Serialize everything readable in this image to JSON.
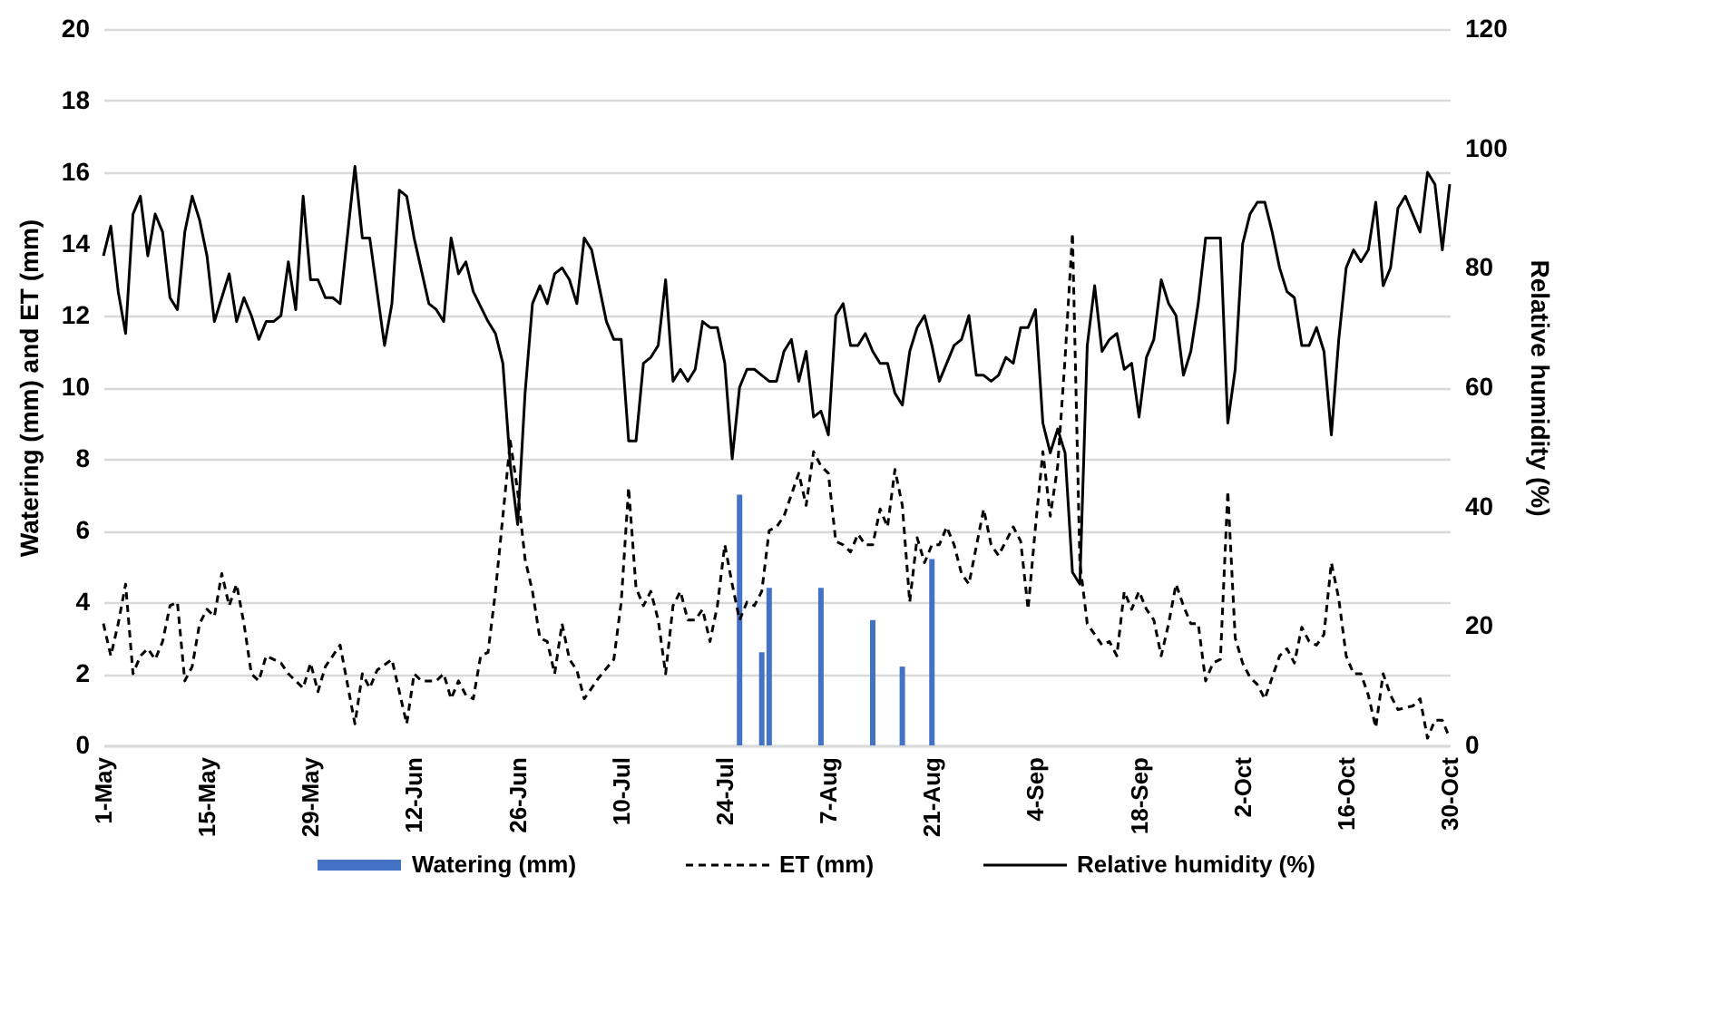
{
  "chart_data": {
    "type": "line",
    "ylabel": "Watering (mm) and ET (mm)",
    "y2label": "Relative humidity (%)",
    "xlim": [
      "--05-01",
      "--10-30"
    ],
    "xticks": [
      {
        "value": "--05-01",
        "label": "1-May"
      },
      {
        "value": "--05-15",
        "label": "15-May"
      },
      {
        "value": "--05-29",
        "label": "29-May"
      },
      {
        "value": "--06-12",
        "label": "12-Jun"
      },
      {
        "value": "--06-26",
        "label": "26-Jun"
      },
      {
        "value": "--07-10",
        "label": "10-Jul"
      },
      {
        "value": "--07-24",
        "label": "24-Jul"
      },
      {
        "value": "--08-07",
        "label": "7-Aug"
      },
      {
        "value": "--08-21",
        "label": "21-Aug"
      },
      {
        "value": "--09-04",
        "label": "4-Sep"
      },
      {
        "value": "--09-18",
        "label": "18-Sep"
      },
      {
        "value": "--10-02",
        "label": "2-Oct"
      },
      {
        "value": "--10-16",
        "label": "16-Oct"
      },
      {
        "value": "--10-30",
        "label": "30-Oct"
      }
    ],
    "ylim": [
      0,
      20
    ],
    "yticks": [
      0,
      2,
      4,
      6,
      8,
      10,
      12,
      14,
      16,
      18,
      20
    ],
    "y2lim": [
      0,
      120
    ],
    "y2ticks": [
      0,
      20,
      40,
      60,
      80,
      100,
      120
    ],
    "grid": "y",
    "legend": "bottom",
    "series": [
      {
        "name": "Watering (mm)",
        "type": "bar",
        "color": "#4472c4",
        "x": [
          "--07-26",
          "--07-29",
          "--07-30",
          "--08-06",
          "--08-13",
          "--08-17",
          "--08-21"
        ],
        "values": [
          7.0,
          2.6,
          4.4,
          4.4,
          3.5,
          2.2,
          5.2
        ]
      },
      {
        "name": "ET (mm)",
        "line_style": "dashed",
        "color": "#000000",
        "x": [
          "--05-01",
          "--05-02",
          "--05-03",
          "--05-04",
          "--05-05",
          "--05-06",
          "--05-07",
          "--05-08",
          "--05-09",
          "--05-10",
          "--05-11",
          "--05-12",
          "--05-13",
          "--05-14",
          "--05-15",
          "--05-16",
          "--05-17",
          "--05-18",
          "--05-19",
          "--05-20",
          "--05-21",
          "--05-22",
          "--05-23",
          "--05-24",
          "--05-25",
          "--05-26",
          "--05-28",
          "--05-29",
          "--05-30",
          "--05-31",
          "--06-02",
          "--06-04",
          "--06-05",
          "--06-06",
          "--06-07",
          "--06-09",
          "--06-11",
          "--06-12",
          "--06-13",
          "--06-15",
          "--06-16",
          "--06-17",
          "--06-18",
          "--06-19",
          "--06-20",
          "--06-21",
          "--06-22",
          "--06-23",
          "--06-24",
          "--06-25",
          "--06-26",
          "--06-27",
          "--06-28",
          "--06-29",
          "--06-30",
          "--07-01",
          "--07-02",
          "--07-03",
          "--07-04",
          "--07-05",
          "--07-06",
          "--07-07",
          "--07-09",
          "--07-10",
          "--07-11",
          "--07-12",
          "--07-13",
          "--07-14",
          "--07-15",
          "--07-16",
          "--07-17",
          "--07-18",
          "--07-19",
          "--07-20",
          "--07-21",
          "--07-22",
          "--07-23",
          "--07-24",
          "--07-25",
          "--07-26",
          "--07-27",
          "--07-28",
          "--07-29",
          "--07-30",
          "--07-31",
          "--08-01",
          "--08-03",
          "--08-04",
          "--08-05",
          "--08-06",
          "--08-07",
          "--08-08",
          "--08-09",
          "--08-10",
          "--08-11",
          "--08-12",
          "--08-13",
          "--08-14",
          "--08-15",
          "--08-16",
          "--08-17",
          "--08-18",
          "--08-19",
          "--08-20",
          "--08-21",
          "--08-22",
          "--08-23",
          "--08-24",
          "--08-25",
          "--08-26",
          "--08-28",
          "--08-29",
          "--08-30",
          "--08-31",
          "--09-01",
          "--09-02",
          "--09-03",
          "--09-04",
          "--09-05",
          "--09-06",
          "--09-07",
          "--09-08",
          "--09-09",
          "--09-10",
          "--09-11",
          "--09-12",
          "--09-13",
          "--09-14",
          "--09-15",
          "--09-16",
          "--09-17",
          "--09-18",
          "--09-19",
          "--09-20",
          "--09-21",
          "--09-22",
          "--09-23",
          "--09-24",
          "--09-25",
          "--09-26",
          "--09-27",
          "--09-28",
          "--09-29",
          "--09-30",
          "--10-01",
          "--10-02",
          "--10-03",
          "--10-04",
          "--10-05",
          "--10-06",
          "--10-07",
          "--10-08",
          "--10-09",
          "--10-10",
          "--10-11",
          "--10-12",
          "--10-13",
          "--10-14",
          "--10-15",
          "--10-16",
          "--10-17",
          "--10-18",
          "--10-19",
          "--10-20",
          "--10-21",
          "--10-22",
          "--10-23",
          "--10-25",
          "--10-26",
          "--10-27",
          "--10-28",
          "--10-29",
          "--10-30"
        ],
        "values": [
          3.4,
          2.5,
          3.4,
          4.5,
          2.0,
          2.5,
          2.7,
          2.4,
          2.9,
          3.9,
          4.0,
          1.8,
          2.2,
          3.4,
          3.8,
          3.6,
          4.8,
          3.9,
          4.5,
          3.4,
          2.0,
          1.8,
          2.5,
          2.4,
          2.3,
          2.0,
          1.6,
          2.3,
          1.5,
          2.2,
          2.8,
          0.6,
          2.0,
          1.6,
          2.1,
          2.4,
          0.6,
          2.0,
          1.8,
          1.8,
          2.0,
          1.3,
          1.8,
          1.4,
          1.3,
          2.5,
          2.6,
          4.3,
          6.4,
          8.5,
          7.1,
          5.2,
          4.3,
          3.0,
          2.9,
          2.0,
          3.4,
          2.4,
          2.1,
          1.3,
          1.6,
          1.9,
          2.4,
          4.0,
          7.2,
          4.4,
          3.9,
          4.3,
          3.5,
          2.0,
          3.9,
          4.3,
          3.5,
          3.5,
          3.8,
          2.9,
          3.9,
          5.6,
          4.5,
          3.5,
          4.0,
          3.9,
          4.3,
          6.0,
          6.1,
          6.4,
          7.6,
          6.7,
          8.2,
          7.8,
          7.6,
          5.7,
          5.6,
          5.4,
          5.9,
          5.6,
          5.6,
          6.6,
          6.1,
          7.7,
          6.7,
          4.0,
          5.8,
          5.1,
          5.6,
          5.6,
          6.1,
          5.6,
          4.8,
          4.5,
          6.6,
          5.6,
          5.3,
          5.7,
          6.1,
          5.7,
          3.8,
          6.1,
          8.2,
          6.4,
          7.8,
          10.8,
          14.3,
          5.1,
          3.4,
          3.1,
          2.8,
          2.9,
          2.5,
          4.3,
          3.8,
          4.3,
          3.8,
          3.5,
          2.5,
          3.4,
          4.5,
          3.9,
          3.4,
          3.4,
          1.8,
          2.3,
          2.4,
          7.1,
          3.0,
          2.3,
          1.9,
          1.7,
          1.3,
          1.9,
          2.5,
          2.7,
          2.3,
          3.3,
          2.9,
          2.8,
          3.1,
          5.1,
          4.1,
          2.5,
          2.0,
          2.0,
          1.4,
          0.5,
          2.0,
          1.4,
          1.0,
          1.1,
          1.3,
          0.2,
          0.7,
          0.7,
          0.2
        ]
      },
      {
        "name": "Relative humidity (%)",
        "line_style": "solid",
        "axis": "y2",
        "color": "#000000",
        "x": [
          "--05-01",
          "--05-02",
          "--05-03",
          "--05-04",
          "--05-05",
          "--05-06",
          "--05-07",
          "--05-08",
          "--05-09",
          "--05-10",
          "--05-11",
          "--05-12",
          "--05-13",
          "--05-14",
          "--05-15",
          "--05-16",
          "--05-17",
          "--05-18",
          "--05-19",
          "--05-20",
          "--05-21",
          "--05-22",
          "--05-23",
          "--05-24",
          "--05-25",
          "--05-26",
          "--05-27",
          "--05-28",
          "--05-29",
          "--05-30",
          "--05-31",
          "--06-01",
          "--06-02",
          "--06-04",
          "--06-05",
          "--06-06",
          "--06-08",
          "--06-09",
          "--06-10",
          "--06-11",
          "--06-12",
          "--06-14",
          "--06-15",
          "--06-16",
          "--06-17",
          "--06-18",
          "--06-19",
          "--06-20",
          "--06-22",
          "--06-23",
          "--06-24",
          "--06-25",
          "--06-26",
          "--06-27",
          "--06-28",
          "--06-29",
          "--06-30",
          "--07-01",
          "--07-02",
          "--07-03",
          "--07-04",
          "--07-05",
          "--07-06",
          "--07-07",
          "--07-08",
          "--07-09",
          "--07-10",
          "--07-11",
          "--07-12",
          "--07-13",
          "--07-14",
          "--07-15",
          "--07-16",
          "--07-17",
          "--07-18",
          "--07-19",
          "--07-20",
          "--07-21",
          "--07-22",
          "--07-23",
          "--07-24",
          "--07-25",
          "--07-26",
          "--07-27",
          "--07-28",
          "--07-29",
          "--07-30",
          "--07-31",
          "--08-01",
          "--08-02",
          "--08-03",
          "--08-04",
          "--08-05",
          "--08-06",
          "--08-07",
          "--08-08",
          "--08-09",
          "--08-10",
          "--08-11",
          "--08-12",
          "--08-13",
          "--08-14",
          "--08-15",
          "--08-16",
          "--08-17",
          "--08-18",
          "--08-19",
          "--08-20",
          "--08-21",
          "--08-22",
          "--08-23",
          "--08-24",
          "--08-25",
          "--08-26",
          "--08-27",
          "--08-28",
          "--08-29",
          "--08-30",
          "--08-31",
          "--09-01",
          "--09-02",
          "--09-03",
          "--09-04",
          "--09-05",
          "--09-06",
          "--09-07",
          "--09-08",
          "--09-09",
          "--09-10",
          "--09-11",
          "--09-12",
          "--09-13",
          "--09-14",
          "--09-15",
          "--09-16",
          "--09-17",
          "--09-18",
          "--09-19",
          "--09-20",
          "--09-21",
          "--09-22",
          "--09-23",
          "--09-24",
          "--09-25",
          "--09-26",
          "--09-27",
          "--09-28",
          "--09-29",
          "--09-30",
          "--10-01",
          "--10-02",
          "--10-03",
          "--10-04",
          "--10-05",
          "--10-06",
          "--10-07",
          "--10-08",
          "--10-09",
          "--10-10",
          "--10-11",
          "--10-12",
          "--10-13",
          "--10-14",
          "--10-15",
          "--10-16",
          "--10-17",
          "--10-18",
          "--10-19",
          "--10-20",
          "--10-21",
          "--10-22",
          "--10-23",
          "--10-24",
          "--10-25",
          "--10-26",
          "--10-27",
          "--10-28",
          "--10-29",
          "--10-30"
        ],
        "values": [
          82,
          87,
          76,
          69,
          89,
          92,
          82,
          89,
          86,
          75,
          73,
          86,
          92,
          88,
          82,
          71,
          75,
          79,
          71,
          75,
          72,
          68,
          71,
          71,
          72,
          81,
          73,
          92,
          78,
          78,
          75,
          75,
          74,
          97,
          85,
          85,
          67,
          74,
          93,
          92,
          85,
          74,
          73,
          71,
          85,
          79,
          81,
          76,
          71,
          69,
          64,
          47,
          37,
          59,
          74,
          77,
          74,
          79,
          80,
          78,
          74,
          85,
          83,
          77,
          71,
          68,
          68,
          51,
          51,
          64,
          65,
          67,
          78,
          61,
          63,
          61,
          63,
          71,
          70,
          70,
          64,
          48,
          60,
          63,
          63,
          62,
          61,
          61,
          66,
          68,
          61,
          66,
          55,
          56,
          52,
          72,
          74,
          67,
          67,
          69,
          66,
          64,
          64,
          59,
          57,
          66,
          70,
          72,
          67,
          61,
          64,
          67,
          68,
          72,
          62,
          62,
          61,
          62,
          65,
          64,
          70,
          70,
          73,
          54,
          49,
          53,
          49,
          29,
          27,
          67,
          77,
          66,
          68,
          69,
          63,
          64,
          55,
          65,
          68,
          78,
          74,
          72,
          62,
          66,
          74,
          85,
          85,
          85,
          54,
          63,
          84,
          89,
          91,
          91,
          86,
          80,
          76,
          75,
          67,
          67,
          70,
          66,
          52,
          68,
          80,
          83,
          81,
          83,
          91,
          77,
          80,
          90,
          92,
          89,
          86,
          96,
          94,
          83,
          94
        ]
      }
    ]
  }
}
